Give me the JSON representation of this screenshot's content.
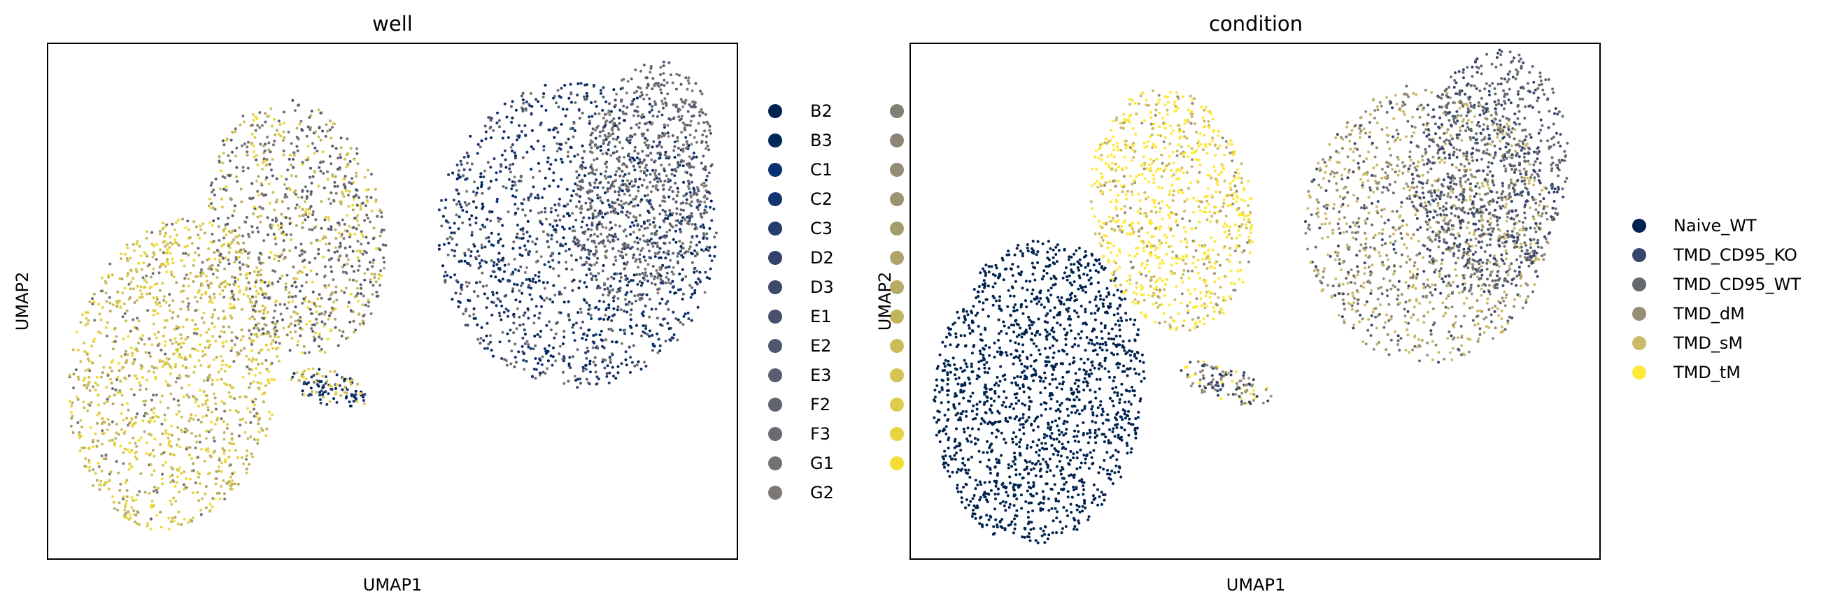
{
  "chart_data": [
    {
      "type": "scatter",
      "title": "well",
      "xlabel": "UMAP1",
      "ylabel": "UMAP2",
      "grid": false,
      "legend_placement": "right, outside plot (2 columns; second column labels cropped)",
      "legend": [
        {
          "label": "B2",
          "color": "#00224e"
        },
        {
          "label": "B3",
          "color": "#01285a"
        },
        {
          "label": "C1",
          "color": "#0a3170"
        },
        {
          "label": "C2",
          "color": "#123570"
        },
        {
          "label": "C3",
          "color": "#263c6e"
        },
        {
          "label": "D2",
          "color": "#33436c"
        },
        {
          "label": "D3",
          "color": "#3e4a6c"
        },
        {
          "label": "E1",
          "color": "#48506c"
        },
        {
          "label": "E2",
          "color": "#50566e"
        },
        {
          "label": "E3",
          "color": "#595d6f"
        },
        {
          "label": "F2",
          "color": "#616370"
        },
        {
          "label": "F3",
          "color": "#6a6a72"
        },
        {
          "label": "G1",
          "color": "#727174"
        },
        {
          "label": "G2",
          "color": "#7b7876"
        },
        {
          "label": "",
          "color": "#837f76"
        },
        {
          "label": "",
          "color": "#8b8675"
        },
        {
          "label": "",
          "color": "#948d73"
        },
        {
          "label": "",
          "color": "#9c9470"
        },
        {
          "label": "",
          "color": "#a59c6c"
        },
        {
          "label": "",
          "color": "#aea46a"
        },
        {
          "label": "",
          "color": "#b7ab66"
        },
        {
          "label": "",
          "color": "#c1b45f"
        },
        {
          "label": "",
          "color": "#cbbc59"
        },
        {
          "label": "",
          "color": "#d4c451"
        },
        {
          "label": "",
          "color": "#ddcc49"
        },
        {
          "label": "",
          "color": "#e7d43e"
        },
        {
          "label": "",
          "color": "#f2de34"
        }
      ]
    },
    {
      "type": "scatter",
      "title": "condition",
      "xlabel": "UMAP1",
      "ylabel": "UMAP2",
      "grid": false,
      "legend_placement": "right, outside plot",
      "legend": [
        {
          "label": "Naive_WT",
          "color": "#00224e"
        },
        {
          "label": "TMD_CD95_KO",
          "color": "#35456c"
        },
        {
          "label": "TMD_CD95_WT",
          "color": "#666970"
        },
        {
          "label": "TMD_dM",
          "color": "#958f78"
        },
        {
          "label": "TMD_sM",
          "color": "#cbba69"
        },
        {
          "label": "TMD_tM",
          "color": "#fee838"
        }
      ]
    }
  ]
}
